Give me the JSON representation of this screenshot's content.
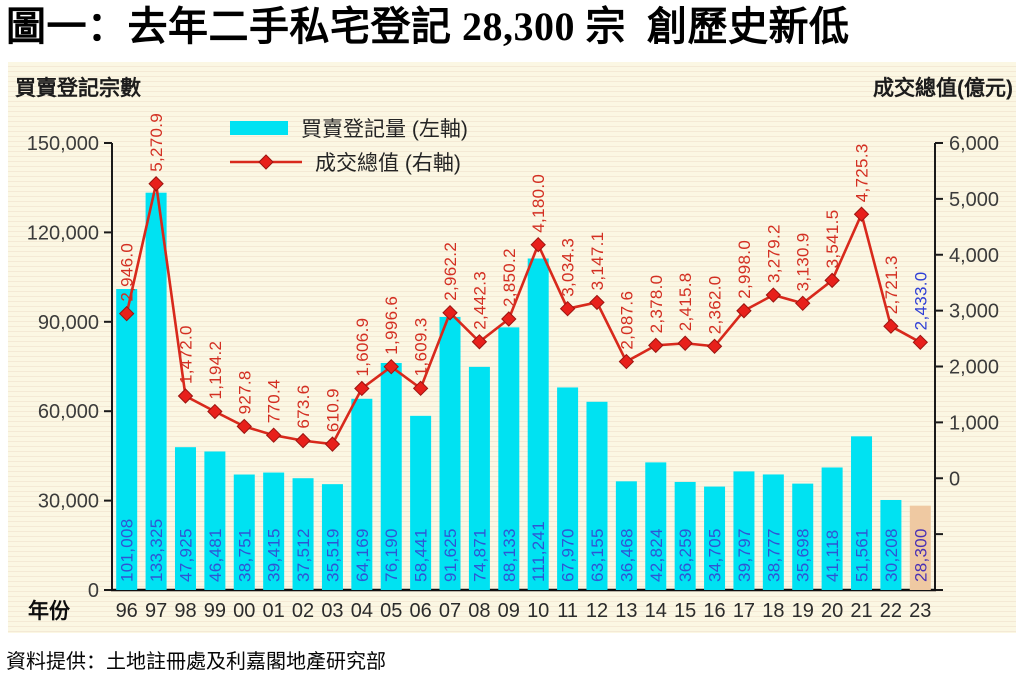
{
  "title": "圖一：去年二手私宅登記 28,300 宗  創歷史新低",
  "source": "資料提供：土地註冊處及利嘉閣地產研究部",
  "chart_data": {
    "type": "bar",
    "subtype": "bar+line combo, dual axis",
    "title": "圖一：去年二手私宅登記 28,300 宗  創歷史新低",
    "categories": [
      "96",
      "97",
      "98",
      "99",
      "00",
      "01",
      "02",
      "03",
      "04",
      "05",
      "06",
      "07",
      "08",
      "09",
      "10",
      "11",
      "12",
      "13",
      "14",
      "15",
      "16",
      "17",
      "18",
      "19",
      "20",
      "21",
      "22",
      "23"
    ],
    "x_axis_title": "年份",
    "grid": "off",
    "legend_position": "top-left inside plot",
    "left_axis": {
      "title": "買賣登記宗數",
      "min": 0,
      "max": 150000,
      "tick_step": 30000,
      "tick_labels": [
        "0",
        "30,000",
        "60,000",
        "90,000",
        "120,000",
        "150,000"
      ]
    },
    "right_axis": {
      "title": "成交總值(億元)",
      "min": -2000,
      "max": 6000,
      "tick_step": 1000,
      "first_labeled_tick": 0,
      "tick_labels": [
        "0",
        "1,000",
        "2,000",
        "3,000",
        "4,000",
        "5,000",
        "6,000"
      ]
    },
    "series": [
      {
        "name": "買賣登記量 (左軸)",
        "type": "bar",
        "axis": "left",
        "color": "#00e2f2",
        "label_color": "#2f55d4",
        "highlight_last": {
          "bar_color": "#efc9a2",
          "label_color": "#4a30b4"
        },
        "values": [
          101008,
          133325,
          47925,
          46481,
          38751,
          39415,
          37512,
          35519,
          64169,
          76190,
          58441,
          91625,
          74871,
          88133,
          111241,
          67970,
          63155,
          36468,
          42824,
          36259,
          34705,
          39797,
          38777,
          35698,
          41118,
          51561,
          30208,
          28300
        ],
        "labels": [
          "101,008",
          "133,325",
          "47,925",
          "46,481",
          "38,751",
          "39,415",
          "37,512",
          "35,519",
          "64,169",
          "76,190",
          "58,441",
          "91,625",
          "74,871",
          "88,133",
          "111,241",
          "67,970",
          "63,155",
          "36,468",
          "42,824",
          "36,259",
          "34,705",
          "39,797",
          "38,777",
          "35,698",
          "41,118",
          "51,561",
          "30,208",
          "28,300"
        ]
      },
      {
        "name": "成交總值 (右軸)",
        "type": "line",
        "axis": "right",
        "color": "#d8291c",
        "marker": "diamond",
        "marker_color": "#e8201b",
        "marker_stroke": "#9c1410",
        "label_color": "#d32f22",
        "last_label_color": "#2f3fd6",
        "values": [
          2946.0,
          5270.9,
          1472.0,
          1194.2,
          927.8,
          770.4,
          673.6,
          610.9,
          1606.9,
          1996.6,
          1609.3,
          2962.2,
          2442.3,
          2850.2,
          4180.0,
          3034.3,
          3147.1,
          2087.6,
          2378.0,
          2415.8,
          2362.0,
          2998.0,
          3279.2,
          3130.9,
          3541.5,
          4725.3,
          2721.3,
          2433.0
        ],
        "labels": [
          "2,946.0",
          "5,270.9",
          "1,472.0",
          "1,194.2",
          "927.8",
          "770.4",
          "673.6",
          "610.9",
          "1,606.9",
          "1,996.6",
          "1,609.3",
          "2,962.2",
          "2,442.3",
          "2,850.2",
          "4,180.0",
          "3,034.3",
          "3,147.1",
          "2,087.6",
          "2,378.0",
          "2,415.8",
          "2,362.0",
          "2,998.0",
          "3,279.2",
          "3,130.9",
          "3,541.5",
          "4,725.3",
          "2,721.3",
          "2,433.0"
        ]
      }
    ]
  }
}
